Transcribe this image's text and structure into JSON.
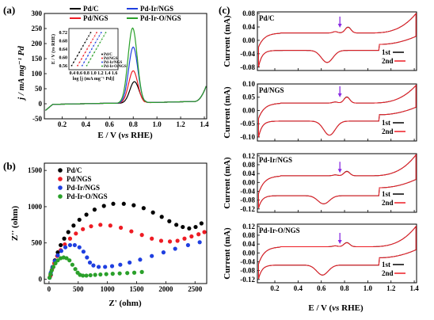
{
  "colors": {
    "pdc": "#000000",
    "pdngs": "#ee1c24",
    "pdir": "#1f3fe0",
    "pdiro": "#2aa02a",
    "arrow": "#8a2be2"
  },
  "chart_data": [
    {
      "panel_label": "(a)",
      "type": "line",
      "xlabel_main": "E / V (",
      "xlabel_italic": "vs",
      "xlabel_tail": " RHE)",
      "ylabel": "j / mA mg⁻¹ Pd",
      "xlim": [
        0.05,
        1.42
      ],
      "ylim": [
        -50,
        300
      ],
      "xticks": [
        0.2,
        0.4,
        0.6,
        0.8,
        1.0,
        1.2,
        1.4
      ],
      "yticks": [
        -50,
        0,
        50,
        100,
        150,
        200,
        250,
        300
      ],
      "legend": [
        "Pd/C",
        "Pd/NGS",
        "Pd-Ir/NGS",
        "Pd-Ir-O/NGS"
      ],
      "series": [
        {
          "name": "Pd/C",
          "peak_v": 0.81,
          "peak_j": 72
        },
        {
          "name": "Pd/NGS",
          "peak_v": 0.8,
          "peak_j": 108
        },
        {
          "name": "Pd-Ir/NGS",
          "peak_v": 0.8,
          "peak_j": 187
        },
        {
          "name": "Pd-Ir-O/NGS",
          "peak_v": 0.795,
          "peak_j": 250
        }
      ],
      "inset": {
        "xlabel": "log [j (mA mg⁻¹ Pd)]",
        "ylabel": "E / V (vs RHE)",
        "xticks": [
          0.4,
          0.6,
          0.8,
          1.0,
          1.2,
          1.4,
          1.6
        ],
        "yticks": [
          0.56,
          0.6,
          0.64,
          0.68,
          0.72
        ],
        "xlim": [
          0.3,
          1.7
        ],
        "ylim": [
          0.54,
          0.74
        ],
        "legend": [
          "Pd/C",
          "Pd/NGS",
          "Pd-Ir/NGS",
          "Pd-Ir-O/NGS"
        ],
        "lines": [
          {
            "name": "Pd/C",
            "x0": 0.38,
            "y0": 0.56,
            "x1": 0.92,
            "y1": 0.72
          },
          {
            "name": "Pd/NGS",
            "x0": 0.55,
            "y0": 0.56,
            "x1": 1.09,
            "y1": 0.72
          },
          {
            "name": "Pd-Ir/NGS",
            "x0": 0.68,
            "y0": 0.56,
            "x1": 1.22,
            "y1": 0.72
          },
          {
            "name": "Pd-Ir-O/NGS",
            "x0": 0.81,
            "y0": 0.56,
            "x1": 1.35,
            "y1": 0.72
          }
        ]
      }
    },
    {
      "panel_label": "(b)",
      "type": "scatter",
      "xlabel": "Z' (ohm)",
      "ylabel": "Z'' (ohm)",
      "xlim": [
        -80,
        2700
      ],
      "ylim": [
        -60,
        1600
      ],
      "xticks": [
        0,
        500,
        1000,
        1500,
        2000,
        2500
      ],
      "yticks": [
        0,
        500,
        1000,
        1500
      ],
      "series": [
        {
          "name": "Pd/C",
          "x": [
            30,
            60,
            100,
            150,
            200,
            260,
            330,
            420,
            520,
            640,
            780,
            940,
            1100,
            1280,
            1450,
            1620,
            1780,
            1930,
            2060,
            2180,
            2290,
            2400,
            2510,
            2610
          ],
          "y": [
            60,
            160,
            260,
            370,
            470,
            560,
            650,
            740,
            820,
            890,
            960,
            1010,
            1040,
            1040,
            1020,
            980,
            920,
            860,
            800,
            750,
            720,
            700,
            720,
            770
          ]
        },
        {
          "name": "Pd/NGS",
          "x": [
            20,
            50,
            90,
            140,
            200,
            270,
            360,
            460,
            580,
            720,
            880,
            1050,
            1230,
            1410,
            1590,
            1760,
            1920,
            2070,
            2200,
            2320,
            2440,
            2560,
            2660
          ],
          "y": [
            40,
            130,
            220,
            320,
            400,
            480,
            560,
            630,
            690,
            730,
            750,
            740,
            710,
            660,
            610,
            560,
            530,
            520,
            530,
            560,
            590,
            620,
            650
          ]
        },
        {
          "name": "Pd-Ir/NGS",
          "x": [
            10,
            30,
            60,
            100,
            150,
            210,
            280,
            360,
            440,
            520,
            590,
            650,
            700,
            760,
            850,
            960,
            1080,
            1220,
            1380,
            1560,
            1760,
            1960,
            2160,
            2380,
            2580
          ],
          "y": [
            20,
            90,
            170,
            250,
            330,
            390,
            440,
            470,
            470,
            440,
            380,
            300,
            230,
            190,
            170,
            170,
            180,
            200,
            230,
            270,
            320,
            370,
            420,
            470,
            510
          ]
        },
        {
          "name": "Pd-Ir-O/NGS",
          "x": [
            10,
            25,
            45,
            75,
            110,
            150,
            200,
            250,
            300,
            350,
            400,
            450,
            490,
            530,
            580,
            640,
            710,
            790,
            880,
            980,
            1090,
            1210,
            1340,
            1460,
            1590
          ],
          "y": [
            20,
            70,
            120,
            170,
            220,
            260,
            290,
            300,
            290,
            260,
            200,
            140,
            90,
            60,
            50,
            50,
            55,
            60,
            65,
            70,
            75,
            80,
            85,
            90,
            100
          ]
        }
      ]
    },
    {
      "panel_label": "(c)",
      "type": "line",
      "xlabel_main": "E / V (",
      "xlabel_italic": "vs",
      "xlabel_tail": " RHE)",
      "xlim": [
        0.05,
        1.42
      ],
      "xticks": [
        0.2,
        0.4,
        0.6,
        0.8,
        1.0,
        1.2,
        1.4
      ],
      "series_names": [
        "1st",
        "2nd"
      ],
      "panels": [
        {
          "name": "Pd/C",
          "ylabel": "Current (mA)",
          "ylim": [
            -0.09,
            0.085
          ],
          "yticks": [
            -0.08,
            -0.04,
            0.0,
            0.04,
            0.08
          ],
          "ytick_labels": [
            "-0.08",
            "-0.04",
            "0.00",
            "0.04",
            "0.08"
          ],
          "ox_peak_v": 0.83,
          "ox_peak_i": 0.042,
          "red_peak_v": 0.65,
          "red_peak_i": -0.066,
          "base_ox": 0.022,
          "base_red": -0.03,
          "start_i": -0.02,
          "end_i": 0.08
        },
        {
          "name": "Pd/NGS",
          "ylabel": "Current (mA)",
          "ylim": [
            -0.115,
            0.1
          ],
          "yticks": [
            -0.1,
            -0.05,
            0.0,
            0.05,
            0.1
          ],
          "ytick_labels": [
            "-0.10",
            "-0.05",
            "0.00",
            "0.05",
            "0.10"
          ],
          "ox_peak_v": 0.82,
          "ox_peak_i": 0.055,
          "red_peak_v": 0.67,
          "red_peak_i": -0.093,
          "base_ox": 0.028,
          "base_red": -0.04,
          "start_i": -0.03,
          "end_i": 0.095
        },
        {
          "name": "Pd-Ir/NGS",
          "ylabel": "Current (mA)",
          "ylim": [
            -0.135,
            0.13
          ],
          "yticks": [
            -0.12,
            -0.08,
            -0.04,
            0.0,
            0.04,
            0.08,
            0.12
          ],
          "ytick_labels": [
            "-0.12",
            "-0.08",
            "-0.04",
            "0.00",
            "0.04",
            "0.08",
            "0.12"
          ],
          "ox_peak_v": 0.82,
          "ox_peak_i": 0.048,
          "red_peak_v": 0.62,
          "red_peak_i": -0.097,
          "base_ox": 0.03,
          "base_red": -0.06,
          "start_i": -0.05,
          "end_i": 0.125
        },
        {
          "name": "Pd-Ir-O/NGS",
          "ylabel": "Current (mA)",
          "ylim": [
            -0.135,
            0.13
          ],
          "yticks": [
            -0.12,
            -0.08,
            -0.04,
            0.0,
            0.04,
            0.08,
            0.12
          ],
          "ytick_labels": [
            "-0.12",
            "-0.08",
            "-0.04",
            "0.00",
            "0.04",
            "0.08",
            "0.12"
          ],
          "ox_peak_v": 0.82,
          "ox_peak_i": 0.045,
          "red_peak_v": 0.61,
          "red_peak_i": -0.1,
          "base_ox": 0.028,
          "base_red": -0.055,
          "start_i": -0.05,
          "end_i": 0.12
        }
      ]
    }
  ]
}
